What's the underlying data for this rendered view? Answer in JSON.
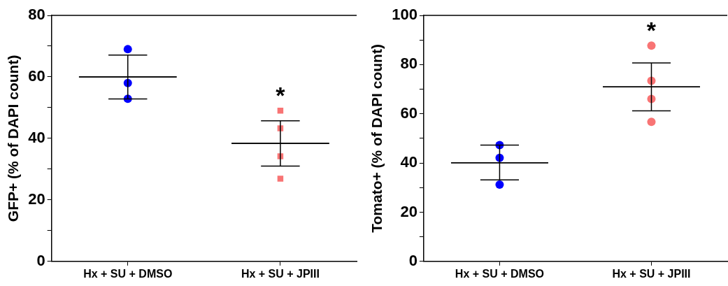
{
  "chart_data": [
    {
      "type": "scatter",
      "categories": [
        "Hx + SU + DMSO",
        "Hx + SU + JPIII"
      ],
      "ylabel": "GFP+ (% of DAPI count)",
      "ylim": [
        0,
        80
      ],
      "yticks": [
        0,
        {
          "value": 10,
          "label": null
        },
        20,
        {
          "value": 30,
          "label": null
        },
        40,
        {
          "value": 50,
          "label": null
        },
        60,
        {
          "value": 70,
          "label": null
        },
        80
      ],
      "series": [
        {
          "color": "#0000ff",
          "marker": "circle",
          "x": [
            "Hx + SU + DMSO",
            "Hx + SU + DMSO",
            "Hx + SU + DMSO"
          ],
          "values": [
            69.0,
            58.0,
            52.9
          ]
        },
        {
          "color": "#f87474",
          "marker": "square",
          "x": [
            "Hx + SU + JPIII",
            "Hx + SU + JPIII",
            "Hx + SU + JPIII",
            "Hx + SU + JPIII"
          ],
          "values": [
            49.0,
            43.3,
            34.2,
            26.9
          ],
          "value_labels": [
            "*",
            null,
            null,
            null
          ]
        },
        {
          "type": "box",
          "color": "#000000",
          "boxes": [
            {
              "low": 52.8,
              "q1": 60.0,
              "median": 60.0,
              "q3": 60.0,
              "high": 67.1
            },
            {
              "low": 31.0,
              "q1": 38.4,
              "median": 38.4,
              "q3": 38.4,
              "high": 45.7
            }
          ]
        }
      ]
    },
    {
      "type": "scatter",
      "categories": [
        "Hx + SU + DMSO",
        "Hx + SU + JPIII"
      ],
      "ylabel": "Tomato+ (% of DAPI count)",
      "ylim": [
        0,
        100
      ],
      "yticks": [
        0,
        {
          "value": 10,
          "label": null
        },
        20,
        {
          "value": 30,
          "label": null
        },
        40,
        {
          "value": 50,
          "label": null
        },
        60,
        {
          "value": 70,
          "label": null
        },
        80,
        {
          "value": 90,
          "label": null
        },
        100
      ],
      "series": [
        {
          "color": "#0000ff",
          "marker": "circle",
          "x": [
            "Hx + SU + DMSO",
            "Hx + SU + DMSO",
            "Hx + SU + DMSO"
          ],
          "values": [
            47.3,
            42.1,
            31.2
          ]
        },
        {
          "color": "#f87474",
          "marker": "circle",
          "x": [
            "Hx + SU + JPIII",
            "Hx + SU + JPIII",
            "Hx + SU + JPIII",
            "Hx + SU + JPIII"
          ],
          "values": [
            87.7,
            73.4,
            66.0,
            56.7
          ],
          "value_labels": [
            "*",
            null,
            null,
            null
          ]
        },
        {
          "type": "box",
          "color": "#000000",
          "boxes": [
            {
              "low": 33.1,
              "q1": 40.1,
              "median": 40.1,
              "q3": 40.1,
              "high": 47.3
            },
            {
              "low": 61.2,
              "q1": 70.9,
              "median": 70.9,
              "q3": 70.9,
              "high": 80.7
            }
          ]
        }
      ]
    }
  ]
}
